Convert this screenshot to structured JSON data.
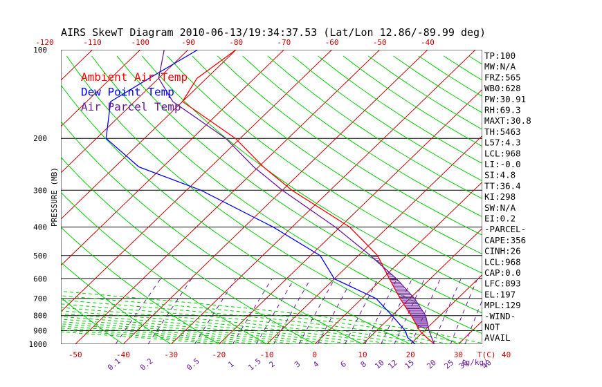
{
  "title": "AIRS SkewT Diagram 2010-06-13/19:34:37.53 (Lat/Lon 12.86/-89.99 deg)",
  "legend": [
    {
      "label": "Ambient Air Temp",
      "color": "#ff0000"
    },
    {
      "label": "Dew Point Temp",
      "color": "#0000ff"
    },
    {
      "label": "Air Parcel Temp",
      "color": "#6a1b9a"
    }
  ],
  "colors": {
    "temp": "#ff0000",
    "dew": "#0000ff",
    "parcel": "#6a1b9a",
    "isotherm": "#cc0000",
    "dry_adiabat": "#00cc00",
    "moist_adiabat": "#00cc00",
    "mixing_ratio": "#6a1b9a",
    "axis": "#cc0000",
    "mixing_axis": "#6a1b9a"
  },
  "indices": [
    "TP:100",
    "MW:N/A",
    "FRZ:565",
    "WB0:628",
    "PW:30.91",
    "RH:69.3",
    "MAXT:30.8",
    "TH:5463",
    "L57:4.3",
    "LCL:968",
    "LI:-0.0",
    "SI:4.8",
    "TT:36.4",
    "KI:298",
    "SW:N/A",
    "EI:0.2",
    "-PARCEL-",
    "CAPE:356",
    "CINH:26",
    "LCL:968",
    "CAP:0.0",
    "LFC:893",
    "EL:197",
    "MPL:129",
    "-WIND-",
    "NOT",
    "AVAIL"
  ],
  "chart_data": {
    "type": "line",
    "title": "AIRS SkewT Diagram 2010-06-13/19:34:37.53 (Lat/Lon 12.86/-89.99 deg)",
    "ylabel": "PRESSURE (MB)",
    "xlabel": "T(C)",
    "mixing_ratio_label": "(g/kg)",
    "y_scale": "log",
    "ylim": [
      1000,
      100
    ],
    "xlim_at_1000mb": [
      -53,
      35
    ],
    "y_ticks": [
      100,
      200,
      300,
      400,
      500,
      600,
      700,
      800,
      900,
      1000
    ],
    "top_t_ticks": [
      -120,
      -110,
      -100,
      -90,
      -80,
      -70,
      -60,
      -50,
      -40
    ],
    "bottom_t_ticks": [
      -50,
      -40,
      -30,
      -20,
      -10,
      0,
      10,
      20,
      30,
      40
    ],
    "mixing_ratio_ticks": [
      0.1,
      0.2,
      0.5,
      1,
      1.5,
      2,
      3,
      4,
      6,
      8,
      10,
      12,
      15,
      20,
      25,
      30,
      40
    ],
    "series": [
      {
        "name": "Ambient Air Temp",
        "points": [
          [
            100,
            -80
          ],
          [
            125,
            -82
          ],
          [
            150,
            -80
          ],
          [
            200,
            -61
          ],
          [
            250,
            -49
          ],
          [
            300,
            -38
          ],
          [
            400,
            -18
          ],
          [
            500,
            -6
          ],
          [
            600,
            1.5
          ],
          [
            700,
            8
          ],
          [
            800,
            14
          ],
          [
            900,
            19
          ],
          [
            950,
            22
          ],
          [
            1000,
            25
          ]
        ]
      },
      {
        "name": "Dew Point Temp",
        "points": [
          [
            100,
            -88
          ],
          [
            125,
            -92
          ],
          [
            150,
            -95
          ],
          [
            200,
            -88
          ],
          [
            250,
            -75
          ],
          [
            300,
            -57
          ],
          [
            400,
            -34
          ],
          [
            500,
            -18
          ],
          [
            600,
            -10
          ],
          [
            700,
            3
          ],
          [
            800,
            10
          ],
          [
            900,
            16
          ],
          [
            950,
            18
          ],
          [
            1000,
            21
          ]
        ]
      },
      {
        "name": "Air Parcel Temp",
        "points": [
          [
            100,
            -95
          ],
          [
            125,
            -90
          ],
          [
            150,
            -82
          ],
          [
            200,
            -63
          ],
          [
            250,
            -51
          ],
          [
            300,
            -40
          ],
          [
            400,
            -21
          ],
          [
            500,
            -7.5
          ],
          [
            600,
            3
          ],
          [
            700,
            11
          ],
          [
            800,
            17
          ],
          [
            900,
            21
          ],
          [
            950,
            23
          ],
          [
            1000,
            25
          ]
        ]
      }
    ]
  }
}
